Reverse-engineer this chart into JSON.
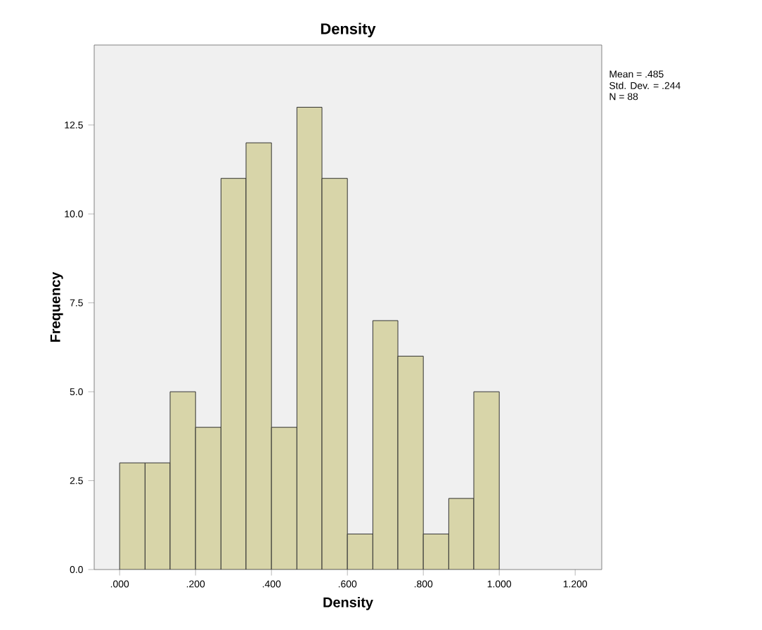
{
  "chart_data": {
    "type": "histogram",
    "title": "Density",
    "xlabel": "Density",
    "ylabel": "Frequency",
    "bins": [
      0,
      0.067,
      0.133,
      0.2,
      0.267,
      0.333,
      0.4,
      0.467,
      0.533,
      0.6,
      0.667,
      0.733,
      0.8,
      0.867,
      0.933,
      1.0
    ],
    "values": [
      3,
      3,
      5,
      4,
      11,
      12,
      4,
      13,
      11,
      1,
      7,
      6,
      1,
      2,
      5
    ],
    "color": "#d8d5a9",
    "xlim": [
      -0.067,
      1.27
    ],
    "ylim": [
      0,
      14.75
    ],
    "xticks": [
      {
        "value": 0,
        "label": ".000"
      },
      {
        "value": 0.2,
        "label": ".200"
      },
      {
        "value": 0.4,
        "label": ".400"
      },
      {
        "value": 0.6,
        "label": ".600"
      },
      {
        "value": 0.8,
        "label": ".800"
      },
      {
        "value": 1.0,
        "label": "1.000"
      },
      {
        "value": 1.2,
        "label": "1.200"
      }
    ],
    "yticks": [
      {
        "value": 0,
        "label": "0.0"
      },
      {
        "value": 2.5,
        "label": "2.5"
      },
      {
        "value": 5,
        "label": "5.0"
      },
      {
        "value": 7.5,
        "label": "7.5"
      },
      {
        "value": 10,
        "label": "10.0"
      },
      {
        "value": 12.5,
        "label": "12.5"
      }
    ],
    "annotations": [
      "Mean = .485",
      "Std. Dev. = .244",
      "N = 88"
    ],
    "grid": false
  }
}
